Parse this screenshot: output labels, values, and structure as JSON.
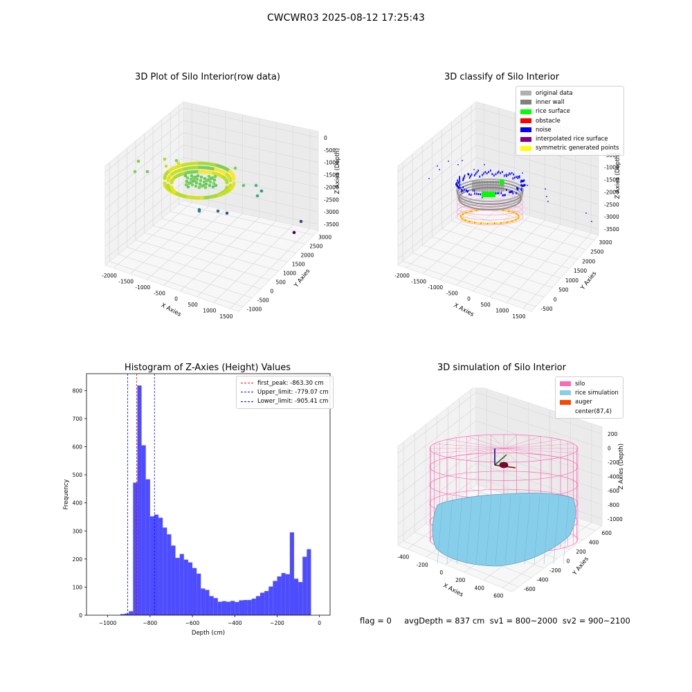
{
  "figure": {
    "title": "CWCWR03 2025-08-12 17:25:43",
    "footer": "flag = 0     avgDepth = 837 cm  sv1 = 800~2000  sv2 = 900~2100"
  },
  "chart_data": [
    {
      "type": "scatter",
      "projection": "3d",
      "title": "3D Plot of Silo Interior(row data)",
      "xlabel": "X Axies",
      "ylabel": "Y Axies",
      "zlabel": "Z Axies (Depth)",
      "xticks": [
        "-2000",
        "-1500",
        "-1000",
        "-500",
        "0",
        "500",
        "1000",
        "1500"
      ],
      "yticks": [
        "-1000",
        "-500",
        "0",
        "500",
        "1000",
        "1500",
        "2000",
        "2500",
        "3000"
      ],
      "zticks": [
        "0",
        "-500",
        "-1000",
        "-1500",
        "-2000",
        "-2500",
        "-3000",
        "-3500"
      ],
      "colormap": "viridis"
    },
    {
      "type": "scatter",
      "projection": "3d",
      "title": "3D classify of Silo Interior",
      "xlabel": "X Axies",
      "ylabel": "Y Axies",
      "zlabel": "Z Axies (Depth)",
      "xticks": [
        "-2000",
        "-1500",
        "-1000",
        "-500",
        "0",
        "500",
        "1000",
        "1500"
      ],
      "yticks": [
        "-500",
        "0",
        "500",
        "1000",
        "1500",
        "2000",
        "2500",
        "3000"
      ],
      "zticks": [
        "0",
        "-500",
        "-1000",
        "-1500",
        "-2000",
        "-2500",
        "-3000",
        "-3500"
      ],
      "legend_position": "top-right",
      "legend": [
        {
          "label": "original data",
          "color": "#b0b0b0"
        },
        {
          "label": "inner wall",
          "color": "#808080"
        },
        {
          "label": "rice surface",
          "color": "#00ff00"
        },
        {
          "label": "obstacle",
          "color": "#ff0000"
        },
        {
          "label": "noise",
          "color": "#0000ff"
        },
        {
          "label": "interpolated rice surface",
          "color": "#800080"
        },
        {
          "label": "symmetric generated points",
          "color": "#ffff00"
        }
      ]
    },
    {
      "type": "bar",
      "title": "Histogram of Z-Axies (Height) Values",
      "xlabel": "Depth (cm)",
      "ylabel": "Frequency",
      "xlim": [
        -1100,
        50
      ],
      "ylim": [
        0,
        860
      ],
      "xticks": [
        -1000,
        -800,
        -600,
        -400,
        -200,
        0
      ],
      "yticks": [
        0,
        100,
        200,
        300,
        400,
        500,
        600,
        700,
        800
      ],
      "bar_color": "#4d4dff",
      "bin_width": 20,
      "bins": [
        {
          "x": -930,
          "y": 4
        },
        {
          "x": -910,
          "y": 6
        },
        {
          "x": -890,
          "y": 14
        },
        {
          "x": -870,
          "y": 472
        },
        {
          "x": -850,
          "y": 818
        },
        {
          "x": -830,
          "y": 605
        },
        {
          "x": -810,
          "y": 484
        },
        {
          "x": -790,
          "y": 352
        },
        {
          "x": -770,
          "y": 358
        },
        {
          "x": -750,
          "y": 347
        },
        {
          "x": -730,
          "y": 312
        },
        {
          "x": -710,
          "y": 288
        },
        {
          "x": -690,
          "y": 248
        },
        {
          "x": -670,
          "y": 204
        },
        {
          "x": -650,
          "y": 218
        },
        {
          "x": -630,
          "y": 198
        },
        {
          "x": -610,
          "y": 188
        },
        {
          "x": -590,
          "y": 168
        },
        {
          "x": -570,
          "y": 148
        },
        {
          "x": -550,
          "y": 95
        },
        {
          "x": -530,
          "y": 90
        },
        {
          "x": -510,
          "y": 68
        },
        {
          "x": -490,
          "y": 61
        },
        {
          "x": -470,
          "y": 48
        },
        {
          "x": -450,
          "y": 50
        },
        {
          "x": -430,
          "y": 48
        },
        {
          "x": -410,
          "y": 51
        },
        {
          "x": -390,
          "y": 47
        },
        {
          "x": -370,
          "y": 53
        },
        {
          "x": -350,
          "y": 54
        },
        {
          "x": -330,
          "y": 54
        },
        {
          "x": -310,
          "y": 59
        },
        {
          "x": -290,
          "y": 68
        },
        {
          "x": -270,
          "y": 80
        },
        {
          "x": -250,
          "y": 86
        },
        {
          "x": -230,
          "y": 102
        },
        {
          "x": -210,
          "y": 122
        },
        {
          "x": -190,
          "y": 138
        },
        {
          "x": -170,
          "y": 150
        },
        {
          "x": -150,
          "y": 146
        },
        {
          "x": -130,
          "y": 295
        },
        {
          "x": -110,
          "y": 130
        },
        {
          "x": -90,
          "y": 118
        },
        {
          "x": -70,
          "y": 208
        },
        {
          "x": -50,
          "y": 235
        }
      ],
      "vlines": [
        {
          "x": -863.3,
          "color": "#ff0000",
          "label": "first_peak: -863.30 cm"
        },
        {
          "x": -779.07,
          "color": "#0000ff",
          "label": "Upper_limit: -779.07 cm"
        },
        {
          "x": -905.41,
          "color": "#0000ff",
          "label": "Lower_limit: -905.41 cm"
        }
      ],
      "legend_position": "top-right"
    },
    {
      "type": "surface",
      "projection": "3d",
      "title": "3D simulation of Silo Interior",
      "xlabel": "X Axies",
      "ylabel": "Y Axies",
      "zlabel": "Z Axies (Depth)",
      "xticks": [
        "-400",
        "-200",
        "0",
        "200",
        "400",
        "600"
      ],
      "yticks": [
        "-600",
        "-400",
        "-200",
        "0",
        "200",
        "400",
        "600"
      ],
      "zticks": [
        "200",
        "0",
        "-200",
        "-400",
        "-600",
        "-800",
        "-1000"
      ],
      "legend_position": "top-right",
      "legend": [
        {
          "label": "silo",
          "color": "#ff69b4"
        },
        {
          "label": "rice simulation",
          "color": "#87ceeb"
        },
        {
          "label": "auger",
          "color": "#ff4500"
        },
        {
          "label": "center(87,4)",
          "color": "#ffffff"
        }
      ]
    }
  ]
}
